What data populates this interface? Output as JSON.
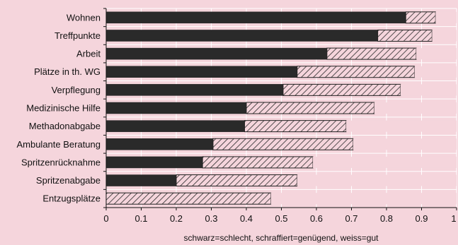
{
  "chart_data": {
    "type": "bar",
    "orientation": "horizontal",
    "stacked": true,
    "categories": [
      "Wohnen",
      "Treffpunkte",
      "Arbeit",
      "Plätze in th. WG",
      "Verpflegung",
      "Medizinische Hilfe",
      "Methadonabgabe",
      "Ambulante Beratung",
      "Spritzenrücknahme",
      "Spritzenabgabe",
      "Entzugsplätze"
    ],
    "series": [
      {
        "name": "schwarz=schlecht",
        "values": [
          0.855,
          0.775,
          0.63,
          0.545,
          0.505,
          0.4,
          0.395,
          0.305,
          0.275,
          0.2,
          0.0
        ]
      },
      {
        "name": "schraffiert=genügend",
        "values": [
          0.085,
          0.155,
          0.255,
          0.335,
          0.335,
          0.365,
          0.29,
          0.4,
          0.315,
          0.345,
          0.47
        ]
      },
      {
        "name": "weiss=gut",
        "values": [
          0.06,
          0.07,
          0.115,
          0.12,
          0.16,
          0.235,
          0.315,
          0.295,
          0.41,
          0.455,
          0.53
        ]
      }
    ],
    "x_ticks": [
      "0",
      "0.1",
      "0.2",
      "0.3",
      "0.4",
      "0.5",
      "0.6",
      "0.7",
      "0.8",
      "0.9",
      "1"
    ],
    "xlim": [
      0,
      1
    ],
    "xlabel": "schwarz=schlecht,  schraffiert=genügend,  weiss=gut",
    "grid": true,
    "colors": {
      "background": "#f5d5dc",
      "bad": "#2a2a2a",
      "sufficient_hatch": "#2a2a2a",
      "good": "#f5d5dc",
      "grid": "#ffffff"
    }
  }
}
